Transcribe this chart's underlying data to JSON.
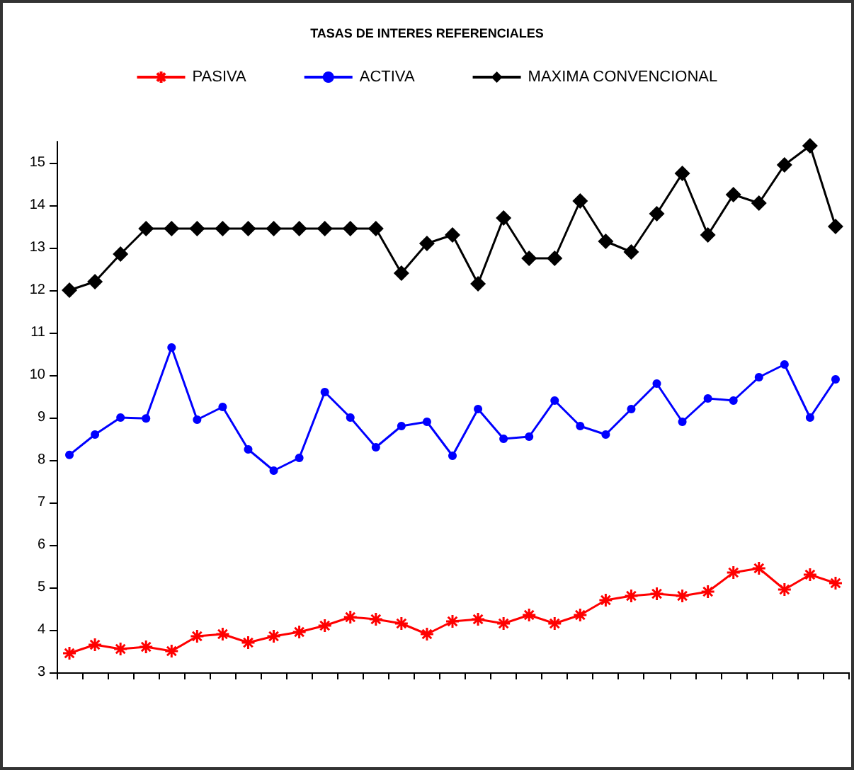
{
  "chart_data": {
    "type": "line",
    "title": "TASAS DE INTERES REFERENCIALES",
    "categories": [
      null,
      null,
      null,
      null,
      null,
      null,
      null,
      null,
      null,
      null,
      null,
      null,
      null,
      null,
      null,
      null,
      null,
      null,
      null,
      null,
      null,
      null,
      null,
      null,
      null,
      null,
      null,
      null,
      null,
      null,
      null
    ],
    "series": [
      {
        "name": "PASIVA",
        "color": "#ff0000",
        "marker": "cross",
        "values": [
          3.45,
          3.65,
          3.55,
          3.6,
          3.5,
          3.85,
          3.9,
          3.7,
          3.85,
          3.95,
          4.1,
          4.3,
          4.25,
          4.15,
          3.9,
          4.2,
          4.25,
          4.15,
          4.35,
          4.15,
          4.35,
          4.7,
          4.8,
          4.85,
          4.8,
          4.9,
          5.35,
          5.45,
          4.95,
          5.3,
          5.1
        ]
      },
      {
        "name": "ACTIVA",
        "color": "#0000ff",
        "marker": "circle",
        "values": [
          8.12,
          8.6,
          9.0,
          8.98,
          10.65,
          8.95,
          9.25,
          8.25,
          7.75,
          8.05,
          9.6,
          9.0,
          8.3,
          8.8,
          8.9,
          8.1,
          9.2,
          8.5,
          8.55,
          9.4,
          8.8,
          8.6,
          9.2,
          9.8,
          8.9,
          9.45,
          9.4,
          9.95,
          10.25,
          9.0,
          9.9
        ]
      },
      {
        "name": "MAXIMA CONVENCIONAL",
        "color": "#000000",
        "marker": "diamond",
        "values": [
          12.0,
          12.2,
          12.85,
          13.45,
          13.45,
          13.45,
          13.45,
          13.45,
          13.45,
          13.45,
          13.45,
          13.45,
          13.45,
          12.4,
          13.1,
          13.3,
          12.15,
          13.7,
          12.75,
          12.75,
          14.1,
          13.15,
          12.9,
          13.8,
          14.75,
          13.3,
          14.25,
          14.05,
          14.95,
          15.4,
          13.5
        ]
      }
    ],
    "ylim": [
      3,
      15.5
    ],
    "yticks": [
      3,
      4,
      5,
      6,
      7,
      8,
      9,
      10,
      11,
      12,
      13,
      14,
      15
    ],
    "grid": false,
    "legend": "top"
  }
}
